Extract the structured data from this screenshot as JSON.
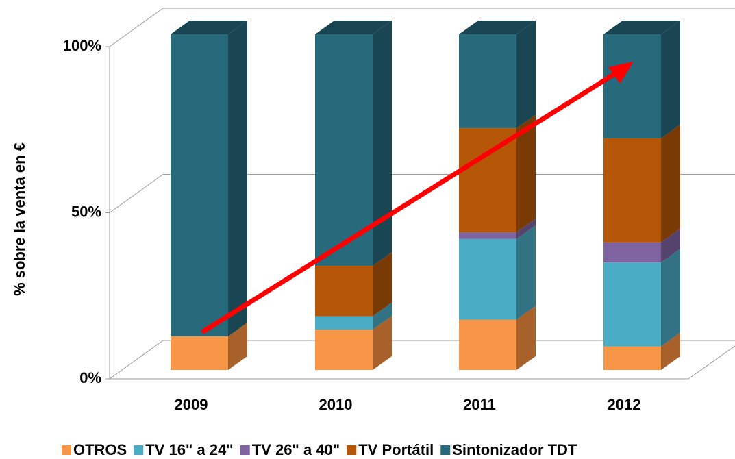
{
  "chart_data": {
    "type": "bar",
    "stacked": true,
    "y_label": "% sobre la venta en €",
    "categories": [
      "2009",
      "2010",
      "2011",
      "2012"
    ],
    "series": [
      {
        "name": "OTROS",
        "color": "#f79646",
        "side": "#a8612a",
        "values": [
          10,
          12,
          15,
          7
        ]
      },
      {
        "name": "TV 16\" a 24\"",
        "color": "#4bacc6",
        "side": "#337282",
        "values": [
          0,
          4,
          24,
          25
        ]
      },
      {
        "name": "TV 26\" a 40\"",
        "color": "#8064a2",
        "side": "#56436d",
        "values": [
          0,
          0,
          2,
          6
        ]
      },
      {
        "name": "TV Portátil",
        "color": "#b65708",
        "side": "#7a3a05",
        "values": [
          0,
          15,
          31,
          31
        ]
      },
      {
        "name": "Sintonizador TDT",
        "color": "#276a7c",
        "side": "#1a4553",
        "values": [
          90,
          69,
          28,
          31
        ]
      }
    ],
    "ylim": [
      0,
      100
    ],
    "yticks": [
      {
        "value": 0,
        "label": "0%"
      },
      {
        "value": 50,
        "label": "50%"
      },
      {
        "value": 100,
        "label": "100%"
      }
    ],
    "grid": true
  }
}
